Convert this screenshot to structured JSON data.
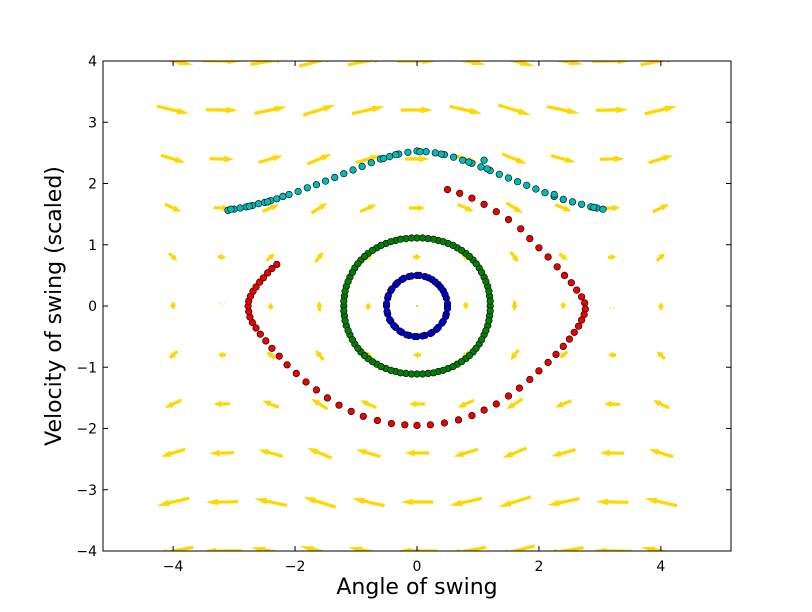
{
  "chart_data": {
    "type": "scatter",
    "title": "",
    "xlabel": "Angle of swing",
    "ylabel": "Velocity of swing (scaled)",
    "xlim": [
      -5.15,
      5.15
    ],
    "ylim": [
      -4,
      4
    ],
    "xticks": [
      -4,
      -2,
      0,
      2,
      4
    ],
    "yticks": [
      -4,
      -3,
      -2,
      -1,
      0,
      1,
      2,
      3,
      4
    ],
    "xtick_labels": [
      "−4",
      "−2",
      "0",
      "2",
      "4"
    ],
    "ytick_labels": [
      "−4",
      "−3",
      "−2",
      "−1",
      "0",
      "1",
      "2",
      "3",
      "4"
    ],
    "grid": false,
    "legend": "none",
    "vector_field": {
      "description": "pendulum phase-space direction field (dx = v, dv = -sin(x))",
      "color": "#ffd700",
      "x": [
        -4,
        -3.2,
        -2.4,
        -1.6,
        -0.8,
        0,
        0.8,
        1.6,
        2.4,
        3.2,
        4
      ],
      "y": [
        -4,
        -3.2,
        -2.4,
        -1.6,
        -0.8,
        0,
        0.8,
        1.6,
        2.4,
        3.2,
        4
      ]
    },
    "series": [
      {
        "color": "#0000cc",
        "curve": "closed",
        "points": [
          [
            0.5,
            0.0
          ],
          [
            0.48,
            0.13
          ],
          [
            0.43,
            0.25
          ],
          [
            0.35,
            0.35
          ],
          [
            0.25,
            0.43
          ],
          [
            0.13,
            0.48
          ],
          [
            0.0,
            0.5
          ],
          [
            -0.13,
            0.48
          ],
          [
            -0.25,
            0.43
          ],
          [
            -0.35,
            0.35
          ],
          [
            -0.43,
            0.25
          ],
          [
            -0.48,
            0.13
          ],
          [
            -0.5,
            0.0
          ],
          [
            -0.48,
            -0.13
          ],
          [
            -0.43,
            -0.25
          ],
          [
            -0.35,
            -0.35
          ],
          [
            -0.25,
            -0.43
          ],
          [
            -0.13,
            -0.48
          ],
          [
            0.0,
            -0.5
          ],
          [
            0.13,
            -0.48
          ],
          [
            0.25,
            -0.43
          ],
          [
            0.35,
            -0.35
          ],
          [
            0.43,
            -0.25
          ],
          [
            0.48,
            -0.13
          ],
          [
            0.5,
            0.04
          ],
          [
            0.46,
            0.19
          ],
          [
            0.39,
            0.3
          ],
          [
            0.3,
            0.39
          ],
          [
            0.19,
            0.46
          ],
          [
            0.04,
            0.5
          ],
          [
            -0.09,
            0.49
          ],
          [
            -0.22,
            0.45
          ],
          [
            -0.32,
            0.38
          ],
          [
            -0.41,
            0.28
          ],
          [
            -0.47,
            0.17
          ],
          [
            -0.5,
            0.04
          ],
          [
            -0.49,
            -0.09
          ],
          [
            -0.45,
            -0.22
          ],
          [
            -0.38,
            -0.32
          ],
          [
            -0.28,
            -0.41
          ],
          [
            -0.17,
            -0.47
          ],
          [
            -0.04,
            -0.5
          ],
          [
            0.09,
            -0.49
          ],
          [
            0.22,
            -0.45
          ],
          [
            0.32,
            -0.38
          ],
          [
            0.41,
            -0.28
          ],
          [
            0.47,
            -0.17
          ],
          [
            0.5,
            -0.04
          ]
        ]
      },
      {
        "color": "#008000",
        "curve": "closed",
        "points": [
          [
            1.2,
            0.0
          ],
          [
            1.19,
            0.16
          ],
          [
            1.16,
            0.32
          ],
          [
            1.1,
            0.47
          ],
          [
            1.02,
            0.62
          ],
          [
            0.92,
            0.75
          ],
          [
            0.8,
            0.86
          ],
          [
            0.66,
            0.95
          ],
          [
            0.51,
            1.02
          ],
          [
            0.35,
            1.07
          ],
          [
            0.18,
            1.1
          ],
          [
            0.0,
            1.11
          ],
          [
            -0.18,
            1.1
          ],
          [
            -0.35,
            1.07
          ],
          [
            -0.51,
            1.02
          ],
          [
            -0.66,
            0.95
          ],
          [
            -0.8,
            0.86
          ],
          [
            -0.92,
            0.75
          ],
          [
            -1.02,
            0.62
          ],
          [
            -1.1,
            0.47
          ],
          [
            -1.16,
            0.32
          ],
          [
            -1.19,
            0.16
          ],
          [
            -1.2,
            0.0
          ],
          [
            -1.19,
            -0.16
          ],
          [
            -1.16,
            -0.32
          ],
          [
            -1.1,
            -0.47
          ],
          [
            -1.02,
            -0.62
          ],
          [
            -0.92,
            -0.75
          ],
          [
            -0.8,
            -0.86
          ],
          [
            -0.66,
            -0.95
          ],
          [
            -0.51,
            -1.02
          ],
          [
            -0.35,
            -1.07
          ],
          [
            -0.18,
            -1.1
          ],
          [
            0.0,
            -1.11
          ],
          [
            0.18,
            -1.1
          ],
          [
            0.35,
            -1.07
          ],
          [
            0.51,
            -1.02
          ],
          [
            0.66,
            -0.95
          ],
          [
            0.8,
            -0.86
          ],
          [
            0.92,
            -0.75
          ],
          [
            1.02,
            -0.62
          ],
          [
            1.1,
            -0.47
          ],
          [
            1.16,
            -0.32
          ],
          [
            1.19,
            -0.16
          ],
          [
            1.2,
            0.08
          ],
          [
            1.18,
            0.24
          ],
          [
            1.13,
            0.4
          ],
          [
            1.06,
            0.55
          ],
          [
            0.97,
            0.69
          ],
          [
            0.86,
            0.81
          ],
          [
            0.73,
            0.91
          ],
          [
            0.59,
            0.99
          ],
          [
            0.43,
            1.05
          ],
          [
            0.27,
            1.09
          ],
          [
            0.09,
            1.11
          ],
          [
            -0.09,
            1.11
          ],
          [
            -0.27,
            1.09
          ],
          [
            -0.43,
            1.05
          ],
          [
            -0.59,
            0.99
          ],
          [
            -0.73,
            0.91
          ],
          [
            -0.86,
            0.81
          ],
          [
            -0.97,
            0.69
          ],
          [
            -1.06,
            0.55
          ],
          [
            -1.13,
            0.4
          ],
          [
            -1.18,
            0.24
          ],
          [
            -1.2,
            0.08
          ],
          [
            -1.2,
            -0.08
          ],
          [
            -1.18,
            -0.24
          ],
          [
            -1.13,
            -0.4
          ],
          [
            -1.06,
            -0.55
          ],
          [
            -0.97,
            -0.69
          ],
          [
            -0.86,
            -0.81
          ],
          [
            -0.73,
            -0.91
          ],
          [
            -0.59,
            -0.99
          ],
          [
            -0.43,
            -1.05
          ],
          [
            -0.27,
            -1.09
          ],
          [
            -0.09,
            -1.11
          ],
          [
            0.09,
            -1.11
          ],
          [
            0.27,
            -1.09
          ],
          [
            0.43,
            -1.05
          ],
          [
            0.59,
            -0.99
          ],
          [
            0.73,
            -0.91
          ],
          [
            0.86,
            -0.81
          ],
          [
            0.97,
            -0.69
          ],
          [
            1.06,
            -0.55
          ],
          [
            1.13,
            -0.4
          ],
          [
            1.18,
            -0.24
          ],
          [
            1.2,
            -0.08
          ]
        ]
      },
      {
        "color": "#ee0000",
        "curve": "open",
        "points": [
          [
            0.5,
            1.9
          ],
          [
            0.7,
            1.84
          ],
          [
            0.9,
            1.76
          ],
          [
            1.1,
            1.66
          ],
          [
            1.3,
            1.54
          ],
          [
            1.5,
            1.41
          ],
          [
            1.7,
            1.26
          ],
          [
            1.85,
            1.1
          ],
          [
            2.0,
            0.95
          ],
          [
            2.15,
            0.8
          ],
          [
            2.3,
            0.64
          ],
          [
            2.42,
            0.5
          ],
          [
            2.53,
            0.38
          ],
          [
            2.62,
            0.26
          ],
          [
            2.7,
            0.15
          ],
          [
            2.75,
            0.05
          ],
          [
            2.76,
            -0.05
          ],
          [
            2.74,
            -0.14
          ],
          [
            2.7,
            -0.23
          ],
          [
            2.65,
            -0.33
          ],
          [
            2.58,
            -0.43
          ],
          [
            2.5,
            -0.54
          ],
          [
            2.4,
            -0.66
          ],
          [
            2.28,
            -0.79
          ],
          [
            2.15,
            -0.92
          ],
          [
            2.0,
            -1.06
          ],
          [
            1.85,
            -1.2
          ],
          [
            1.68,
            -1.34
          ],
          [
            1.5,
            -1.47
          ],
          [
            1.3,
            -1.6
          ],
          [
            1.1,
            -1.7
          ],
          [
            0.9,
            -1.79
          ],
          [
            0.68,
            -1.86
          ],
          [
            0.45,
            -1.91
          ],
          [
            0.22,
            -1.94
          ],
          [
            0.0,
            -1.95
          ],
          [
            -0.2,
            -1.94
          ],
          [
            -0.42,
            -1.92
          ],
          [
            -0.65,
            -1.87
          ],
          [
            -0.88,
            -1.8
          ],
          [
            -1.08,
            -1.72
          ],
          [
            -1.28,
            -1.62
          ],
          [
            -1.47,
            -1.5
          ],
          [
            -1.65,
            -1.37
          ],
          [
            -1.82,
            -1.24
          ],
          [
            -1.98,
            -1.1
          ],
          [
            -2.13,
            -0.96
          ],
          [
            -2.26,
            -0.82
          ],
          [
            -2.38,
            -0.69
          ],
          [
            -2.48,
            -0.57
          ],
          [
            -2.57,
            -0.46
          ],
          [
            -2.64,
            -0.36
          ],
          [
            -2.7,
            -0.27
          ],
          [
            -2.74,
            -0.18
          ],
          [
            -2.76,
            -0.09
          ],
          [
            -2.77,
            0.0
          ],
          [
            -2.76,
            0.08
          ],
          [
            -2.73,
            0.16
          ],
          [
            -2.69,
            0.24
          ],
          [
            -2.64,
            0.31
          ],
          [
            -2.58,
            0.39
          ],
          [
            -2.52,
            0.46
          ],
          [
            -2.45,
            0.54
          ],
          [
            -2.38,
            0.61
          ],
          [
            -2.3,
            0.68
          ]
        ]
      },
      {
        "color": "#00bbbb",
        "curve": "open",
        "points": [
          [
            -3.1,
            1.56
          ],
          [
            -3.0,
            1.58
          ],
          [
            -2.9,
            1.6
          ],
          [
            -2.8,
            1.62
          ],
          [
            -2.7,
            1.64
          ],
          [
            -2.6,
            1.67
          ],
          [
            -2.5,
            1.69
          ],
          [
            -2.4,
            1.72
          ],
          [
            -2.3,
            1.75
          ],
          [
            -2.2,
            1.79
          ],
          [
            -2.1,
            1.82
          ],
          [
            -1.95,
            1.87
          ],
          [
            -1.8,
            1.93
          ],
          [
            -1.65,
            1.98
          ],
          [
            -1.5,
            2.04
          ],
          [
            -1.35,
            2.1
          ],
          [
            -1.2,
            2.16
          ],
          [
            -1.05,
            2.22
          ],
          [
            -0.9,
            2.28
          ],
          [
            -0.75,
            2.34
          ],
          [
            -0.6,
            2.4
          ],
          [
            -0.45,
            2.44
          ],
          [
            -0.3,
            2.48
          ],
          [
            -0.15,
            2.51
          ],
          [
            0.0,
            2.53
          ],
          [
            0.15,
            2.52
          ],
          [
            0.3,
            2.5
          ],
          [
            0.45,
            2.47
          ],
          [
            0.6,
            2.43
          ],
          [
            0.75,
            2.38
          ],
          [
            0.9,
            2.33
          ],
          [
            1.05,
            2.27
          ],
          [
            1.2,
            2.21
          ],
          [
            1.35,
            2.15
          ],
          [
            1.5,
            2.09
          ],
          [
            1.65,
            2.03
          ],
          [
            1.8,
            1.97
          ],
          [
            1.95,
            1.91
          ],
          [
            2.1,
            1.85
          ],
          [
            2.25,
            1.79
          ],
          [
            2.4,
            1.74
          ],
          [
            2.55,
            1.7
          ],
          [
            2.7,
            1.66
          ],
          [
            2.85,
            1.62
          ],
          [
            2.95,
            1.6
          ],
          [
            3.05,
            1.58
          ],
          [
            -3.05,
            1.58
          ],
          [
            -2.75,
            1.63
          ],
          [
            -2.45,
            1.7
          ],
          [
            -0.55,
            2.41
          ],
          [
            -0.35,
            2.47
          ],
          [
            0.05,
            2.52
          ],
          [
            0.4,
            2.48
          ],
          [
            0.85,
            2.35
          ],
          [
            1.15,
            2.24
          ],
          [
            1.1,
            2.38
          ],
          [
            2.25,
            1.82
          ],
          [
            2.9,
            1.61
          ]
        ]
      }
    ]
  }
}
